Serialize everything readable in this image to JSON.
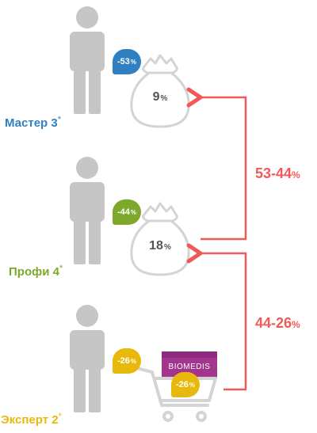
{
  "tiers": [
    {
      "name": "Мастер 3",
      "star": "*",
      "badge_value": "-53",
      "badge_unit": "%",
      "bag_value": "9",
      "bag_unit": "%",
      "color": "#2f7fc1"
    },
    {
      "name": "Профи 4",
      "star": "*",
      "badge_value": "-44",
      "badge_unit": "%",
      "bag_value": "18",
      "bag_unit": "%",
      "color": "#7da82b"
    },
    {
      "name": "Эксперт 2",
      "star": "*",
      "badge_value": "-26",
      "badge_unit": "%",
      "cart_badge_value": "-26",
      "cart_badge_unit": "%",
      "box_label": "BIOMEDIS",
      "color": "#e8b90c"
    }
  ],
  "brackets": [
    {
      "value": "53-44",
      "unit": "%"
    },
    {
      "value": "44-26",
      "unit": "%"
    }
  ],
  "colors": {
    "accent": "#ef5a57",
    "person": "#c6c6c6",
    "bag_outline": "#d4d4d4",
    "box": "#a3358f"
  },
  "icons": [
    "person-icon",
    "money-bag-icon",
    "shopping-cart-icon",
    "product-box-icon",
    "arrow-left-icon"
  ]
}
